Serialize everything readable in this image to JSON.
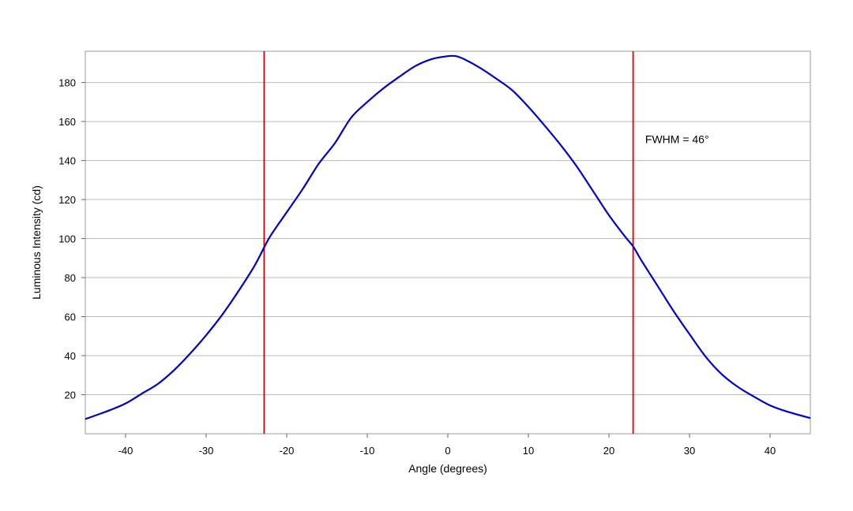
{
  "chart_data": {
    "type": "line",
    "title": "",
    "xlabel": "Angle (degrees)",
    "ylabel": "Luminous Intensity (cd)",
    "xlim": [
      -45,
      45
    ],
    "ylim": [
      0,
      196
    ],
    "x_ticks": [
      -40,
      -30,
      -20,
      -10,
      0,
      10,
      20,
      30,
      40
    ],
    "x_tick_labels": [
      "-40",
      "-30",
      "-20",
      "-10",
      "0",
      "10",
      "20",
      "30",
      "40"
    ],
    "y_ticks": [
      20,
      40,
      60,
      80,
      100,
      120,
      140,
      160,
      180
    ],
    "y_tick_labels": [
      "20",
      "40",
      "60",
      "80",
      "100",
      "120",
      "140",
      "160",
      "180"
    ],
    "grid": "horizontal",
    "series": [
      {
        "color": "#0000cc",
        "points": [
          [
            -45,
            7.5
          ],
          [
            -42,
            12
          ],
          [
            -40,
            15.5
          ],
          [
            -38,
            20.5
          ],
          [
            -36,
            25.5
          ],
          [
            -34,
            32.5
          ],
          [
            -32,
            41
          ],
          [
            -30,
            50.5
          ],
          [
            -28,
            61
          ],
          [
            -26,
            73
          ],
          [
            -24,
            86
          ],
          [
            -22.8,
            95.5
          ],
          [
            -22,
            101.5
          ],
          [
            -20,
            113.5
          ],
          [
            -18,
            125.5
          ],
          [
            -16,
            138.5
          ],
          [
            -14,
            149
          ],
          [
            -12,
            162
          ],
          [
            -10,
            170
          ],
          [
            -8,
            177
          ],
          [
            -6,
            183
          ],
          [
            -4,
            188.5
          ],
          [
            -2,
            192
          ],
          [
            0,
            193.5
          ],
          [
            1,
            193.5
          ],
          [
            2,
            192
          ],
          [
            4,
            187.5
          ],
          [
            6,
            182
          ],
          [
            8,
            176
          ],
          [
            10,
            167.5
          ],
          [
            12,
            158
          ],
          [
            14,
            148
          ],
          [
            16,
            137
          ],
          [
            18,
            124.5
          ],
          [
            20,
            112
          ],
          [
            22,
            101
          ],
          [
            23,
            96
          ],
          [
            24,
            89
          ],
          [
            26,
            76
          ],
          [
            28,
            63
          ],
          [
            30,
            51
          ],
          [
            32,
            39.5
          ],
          [
            34,
            30.5
          ],
          [
            36,
            24
          ],
          [
            38,
            19
          ],
          [
            40,
            14.5
          ],
          [
            42,
            11.5
          ],
          [
            45,
            8
          ]
        ]
      }
    ],
    "vertical_lines": [
      {
        "x": -22.8,
        "color": "#dd0000"
      },
      {
        "x": 23,
        "color": "#dd0000"
      }
    ],
    "annotations": [
      {
        "text": "FWHM = 46°",
        "x": 24.5,
        "y": 149
      }
    ]
  },
  "colors": {
    "grid": "#bbbbbb",
    "frame": "#999999",
    "line": "#0000cc",
    "marker_lines": "#dd0000"
  }
}
